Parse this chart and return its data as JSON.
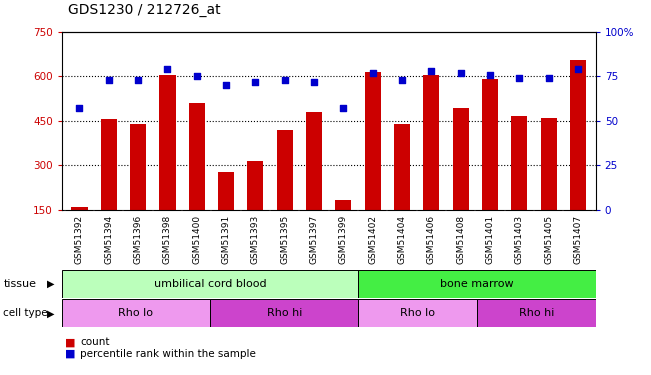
{
  "title": "GDS1230 / 212726_at",
  "samples": [
    "GSM51392",
    "GSM51394",
    "GSM51396",
    "GSM51398",
    "GSM51400",
    "GSM51391",
    "GSM51393",
    "GSM51395",
    "GSM51397",
    "GSM51399",
    "GSM51402",
    "GSM51404",
    "GSM51406",
    "GSM51408",
    "GSM51401",
    "GSM51403",
    "GSM51405",
    "GSM51407"
  ],
  "counts": [
    160,
    455,
    440,
    605,
    510,
    278,
    315,
    420,
    480,
    185,
    615,
    440,
    605,
    495,
    590,
    465,
    460,
    655
  ],
  "percentiles": [
    57,
    73,
    73,
    79,
    75,
    70,
    72,
    73,
    72,
    57,
    77,
    73,
    78,
    77,
    76,
    74,
    74,
    79
  ],
  "ylim_left": [
    150,
    750
  ],
  "ylim_right": [
    0,
    100
  ],
  "yticks_left": [
    150,
    300,
    450,
    600,
    750
  ],
  "yticks_right": [
    0,
    25,
    50,
    75,
    100
  ],
  "bar_color": "#cc0000",
  "dot_color": "#0000cc",
  "tissue_labels": [
    {
      "label": "umbilical cord blood",
      "start": 0,
      "end": 10,
      "color": "#bbffbb"
    },
    {
      "label": "bone marrow",
      "start": 10,
      "end": 18,
      "color": "#44ee44"
    }
  ],
  "celltype_labels": [
    {
      "label": "Rho lo",
      "start": 0,
      "end": 5,
      "color": "#ee99ee"
    },
    {
      "label": "Rho hi",
      "start": 5,
      "end": 10,
      "color": "#cc44cc"
    },
    {
      "label": "Rho lo",
      "start": 10,
      "end": 14,
      "color": "#ee99ee"
    },
    {
      "label": "Rho hi",
      "start": 14,
      "end": 18,
      "color": "#cc44cc"
    }
  ],
  "bg_color": "#ffffff",
  "plot_bg": "#ffffff",
  "tick_label_bg": "#c8c8c8",
  "grid_yticks": [
    300,
    450,
    600
  ]
}
